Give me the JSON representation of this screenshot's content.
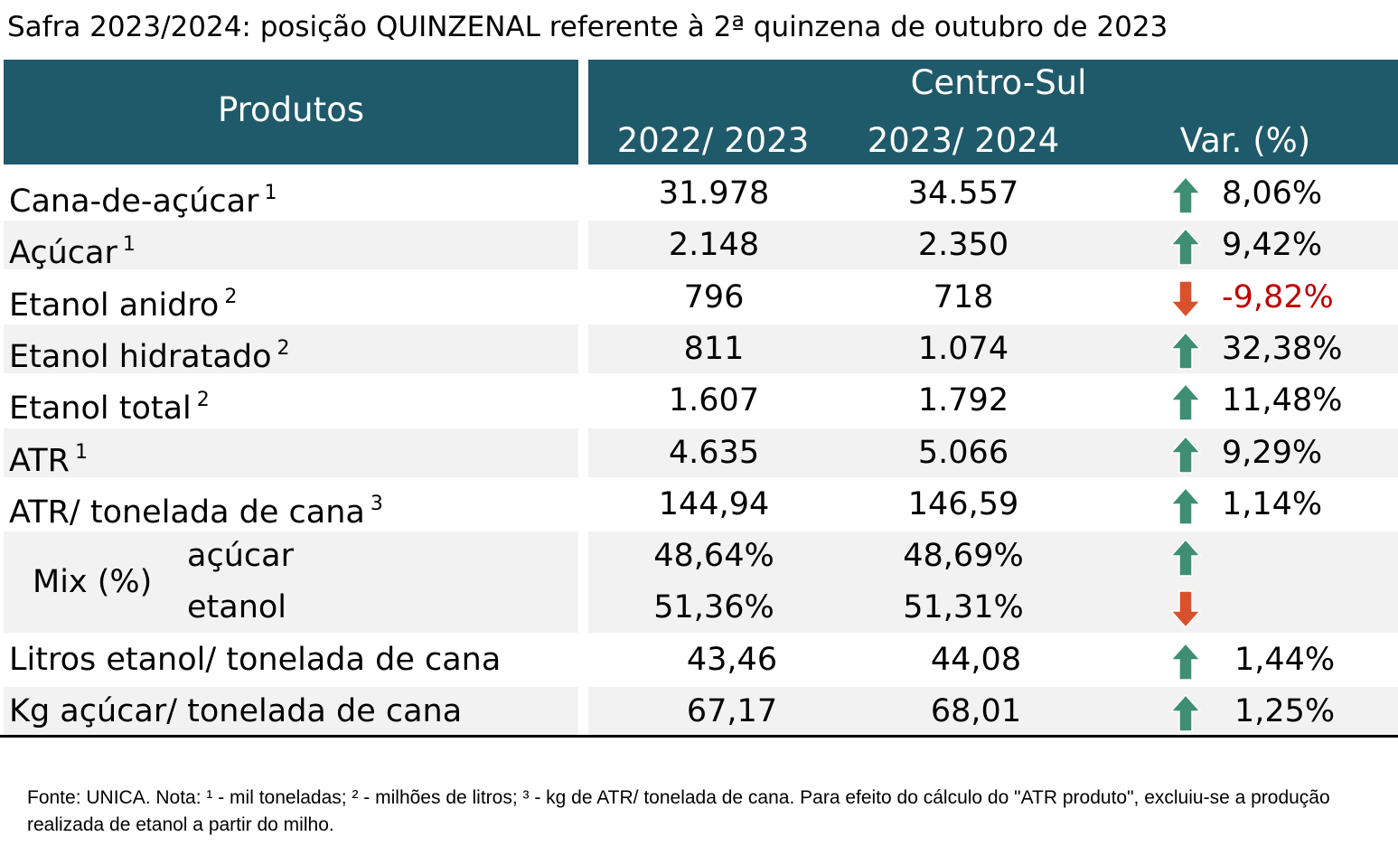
{
  "title": "Safra 2023/2024: posição QUINZENAL referente à 2ª quinzena de outubro de 2023",
  "header": {
    "produtos": "Produtos",
    "region": "Centro-Sul",
    "col_prev": "2022/ 2023",
    "col_curr": "2023/ 2024",
    "col_var": "Var. (%)"
  },
  "rows": [
    {
      "label": "Cana-de-açúcar",
      "note": "1",
      "prev": "31.978",
      "curr": "34.557",
      "direction": "up",
      "var": "8,06%"
    },
    {
      "label": "Açúcar",
      "note": "1",
      "prev": "2.148",
      "curr": "2.350",
      "direction": "up",
      "var": "9,42%"
    },
    {
      "label": "Etanol anidro",
      "note": "2",
      "prev": "796",
      "curr": "718",
      "direction": "down",
      "var": "-9,82%"
    },
    {
      "label": "Etanol hidratado",
      "note": "2",
      "prev": "811",
      "curr": "1.074",
      "direction": "up",
      "var": "32,38%"
    },
    {
      "label": "Etanol total",
      "note": "2",
      "prev": "1.607",
      "curr": "1.792",
      "direction": "up",
      "var": "11,48%"
    },
    {
      "label": "ATR",
      "note": "1",
      "prev": "4.635",
      "curr": "5.066",
      "direction": "up",
      "var": "9,29%"
    },
    {
      "label": "ATR/ tonelada de cana",
      "note": "3",
      "prev": "144,94",
      "curr": "146,59",
      "direction": "up",
      "var": "1,14%"
    }
  ],
  "mix": {
    "label": "Mix (%)",
    "sub": [
      {
        "label": "açúcar",
        "prev": "48,64%",
        "curr": "48,69%",
        "direction": "up"
      },
      {
        "label": "etanol",
        "prev": "51,36%",
        "curr": "51,31%",
        "direction": "down"
      }
    ]
  },
  "rows_bottom": [
    {
      "label": "Litros etanol/ tonelada de cana",
      "prev": "43,46",
      "curr": "44,08",
      "direction": "up",
      "var": "1,44%"
    },
    {
      "label": "Kg açúcar/ tonelada de cana",
      "prev": "67,17",
      "curr": "68,01",
      "direction": "up",
      "var": "1,25%"
    }
  ],
  "colors": {
    "header_bg": "#1f5a6b",
    "band": "#f2f2f2",
    "up_arrow": "#3e8e73",
    "down_arrow": "#d9512c",
    "negative_text": "#c00000"
  },
  "footnote": "Fonte: UNICA. Nota: ¹ - mil toneladas; ² - milhões de litros; ³ - kg de ATR/ tonelada de cana. Para efeito do cálculo do \"ATR produto\", excluiu-se a produção realizada de etanol a partir do milho."
}
